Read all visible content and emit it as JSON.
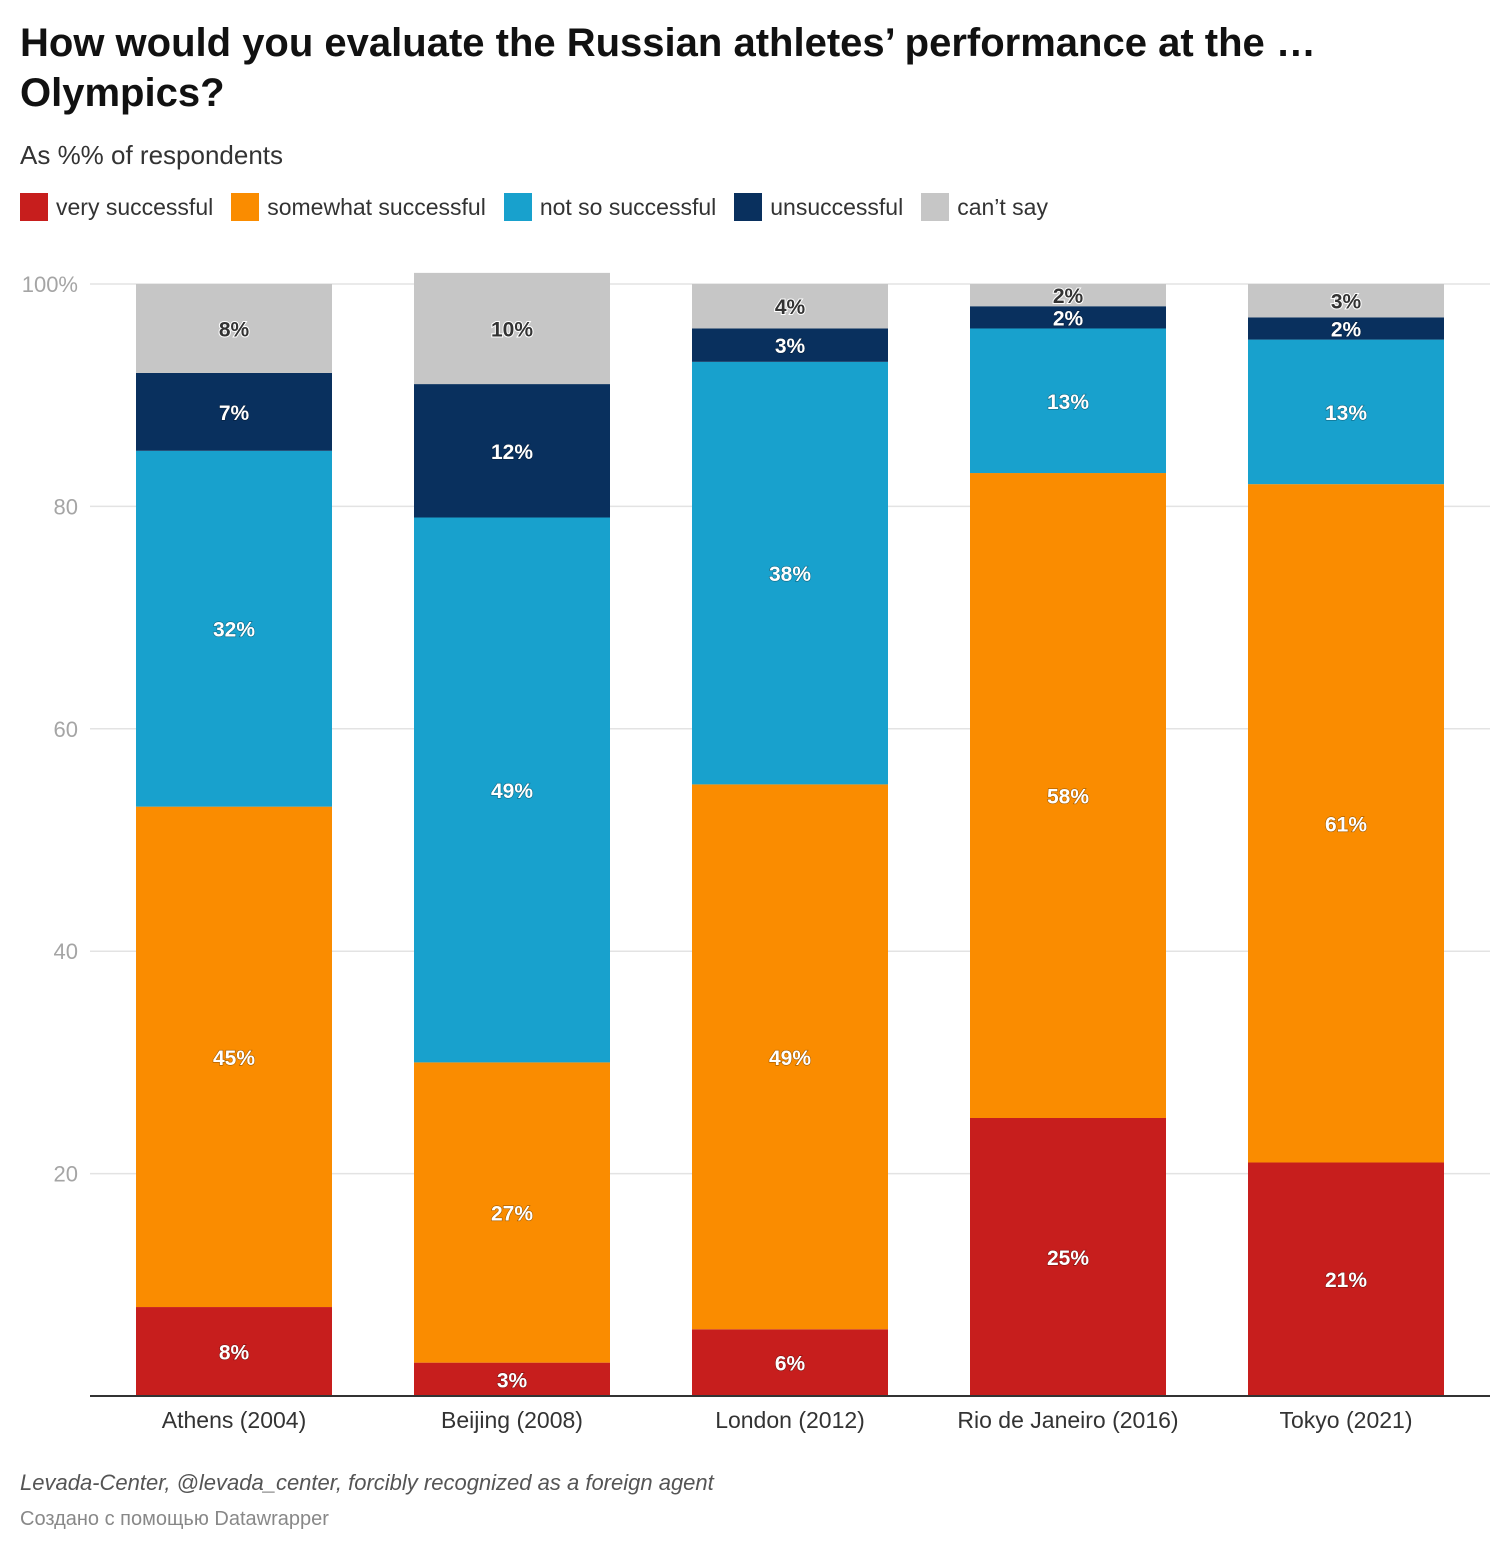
{
  "header": {
    "title": "How would you evaluate the Russian athletes’ performance at the … Olympics?",
    "subtitle": "As %% of respondents"
  },
  "footer": {
    "source": "Levada-Center, @levada_center, forcibly recognized as a foreign agent",
    "credit": "Создано с помощью Datawrapper"
  },
  "chart_data": {
    "type": "bar",
    "stacked": true,
    "title": "How would you evaluate the Russian athletes’ performance at the … Olympics?",
    "subtitle": "As %% of respondents",
    "categories": [
      "Athens (2004)",
      "Beijing (2008)",
      "London (2012)",
      "Rio de Janeiro (2016)",
      "Tokyo (2021)"
    ],
    "series": [
      {
        "name": "very successful",
        "color": "#c71e1d",
        "values": [
          8,
          3,
          6,
          25,
          21
        ],
        "labels": [
          "8%",
          "3%",
          "6%",
          "25%",
          "21%"
        ]
      },
      {
        "name": "somewhat successful",
        "color": "#fa8c00",
        "values": [
          45,
          27,
          49,
          58,
          61
        ],
        "labels": [
          "45%",
          "27%",
          "49%",
          "58%",
          "61%"
        ]
      },
      {
        "name": "not so successful",
        "color": "#18a1cd",
        "values": [
          32,
          49,
          38,
          13,
          13
        ],
        "labels": [
          "32%",
          "49%",
          "38%",
          "13%",
          "13%"
        ]
      },
      {
        "name": "unsuccessful",
        "color": "#09305e",
        "values": [
          7,
          12,
          3,
          2,
          2
        ],
        "labels": [
          "7%",
          "12%",
          "3%",
          "2%",
          "2%"
        ]
      },
      {
        "name": "can’t say",
        "color": "#c6c6c6",
        "values": [
          8,
          10,
          4,
          2,
          3
        ],
        "labels": [
          "8%",
          "10%",
          "4%",
          "2%",
          "3%"
        ]
      }
    ],
    "y_ticks": [
      {
        "value": 100,
        "label": "100%"
      },
      {
        "value": 80,
        "label": "80"
      },
      {
        "value": 60,
        "label": "60"
      },
      {
        "value": 40,
        "label": "40"
      },
      {
        "value": 20,
        "label": "20"
      }
    ],
    "ylim": [
      0,
      100
    ],
    "grid": true,
    "legend": "top-left"
  }
}
